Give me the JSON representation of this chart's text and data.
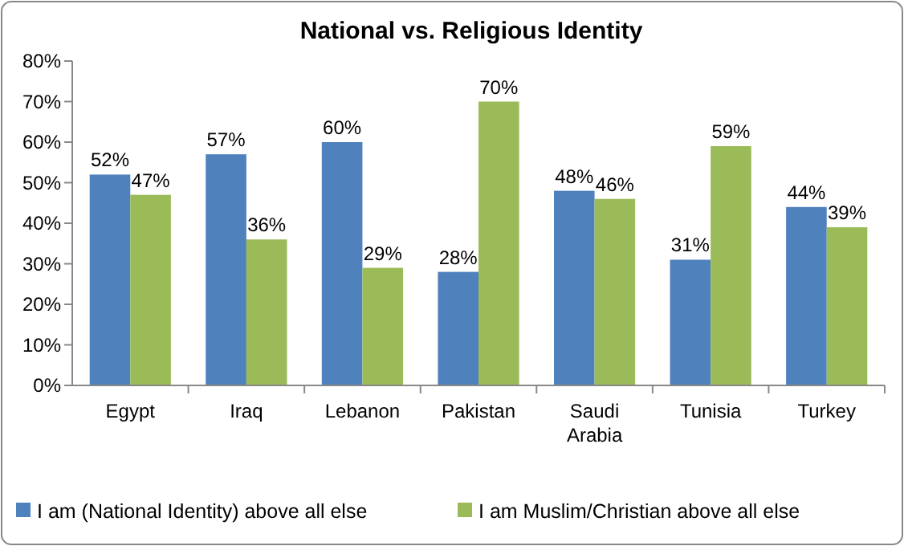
{
  "chart_data": {
    "type": "bar",
    "title": "National vs. Religious Identity",
    "categories": [
      "Egypt",
      "Iraq",
      "Lebanon",
      "Pakistan",
      "Saudi Arabia",
      "Tunisia",
      "Turkey"
    ],
    "series": [
      {
        "name": "I am (National Identity) above all else",
        "color": "#4f81bd",
        "values": [
          52,
          57,
          60,
          28,
          48,
          31,
          44
        ]
      },
      {
        "name": "I am Muslim/Christian above all else",
        "color": "#9bbb59",
        "values": [
          47,
          36,
          29,
          70,
          46,
          59,
          39
        ]
      }
    ],
    "ylim": [
      0,
      80
    ],
    "yticks": [
      {
        "value": 0,
        "label": "0%"
      },
      {
        "value": 10,
        "label": "10%"
      },
      {
        "value": 20,
        "label": "20%"
      },
      {
        "value": 30,
        "label": "30%"
      },
      {
        "value": 40,
        "label": "40%"
      },
      {
        "value": 50,
        "label": "50%"
      },
      {
        "value": 60,
        "label": "60%"
      },
      {
        "value": 70,
        "label": "70%"
      },
      {
        "value": 80,
        "label": "80%"
      }
    ],
    "value_labels": [
      [
        "52%",
        "57%",
        "60%",
        "28%",
        "48%",
        "31%",
        "44%"
      ],
      [
        "47%",
        "36%",
        "29%",
        "70%",
        "46%",
        "59%",
        "39%"
      ]
    ],
    "legend": "bottom",
    "grid": false
  }
}
